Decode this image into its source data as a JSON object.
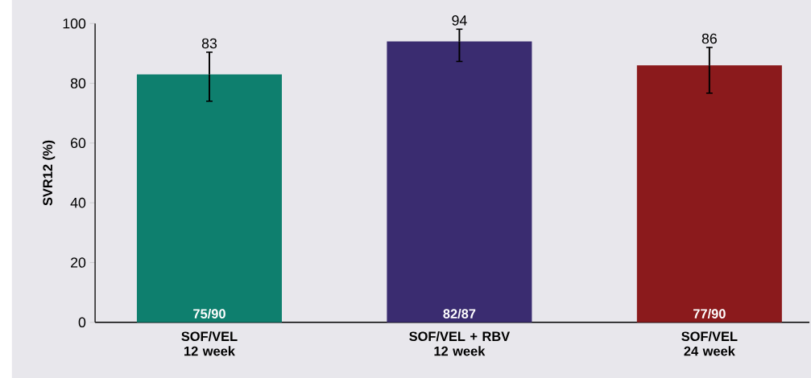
{
  "chart_data": {
    "type": "bar",
    "ylabel": "SVR12 (%)",
    "categories": [
      "SOF/VEL\n12 week",
      "SOF/VEL + RBV\n12 week",
      "SOF/VEL\n24 week"
    ],
    "values": [
      83,
      94,
      86
    ],
    "colors": [
      "#0e7f6e",
      "#3a2c70",
      "#8b1a1c"
    ],
    "errors": [
      [
        74,
        90.4
      ],
      [
        87.3,
        98.1
      ],
      [
        76.7,
        92
      ]
    ],
    "ylim": [
      0,
      100
    ],
    "yticks": [
      0,
      20,
      40,
      60,
      80,
      100
    ],
    "data_labels": true,
    "annotations": [
      "75/90",
      "82/87",
      "77/90"
    ]
  }
}
